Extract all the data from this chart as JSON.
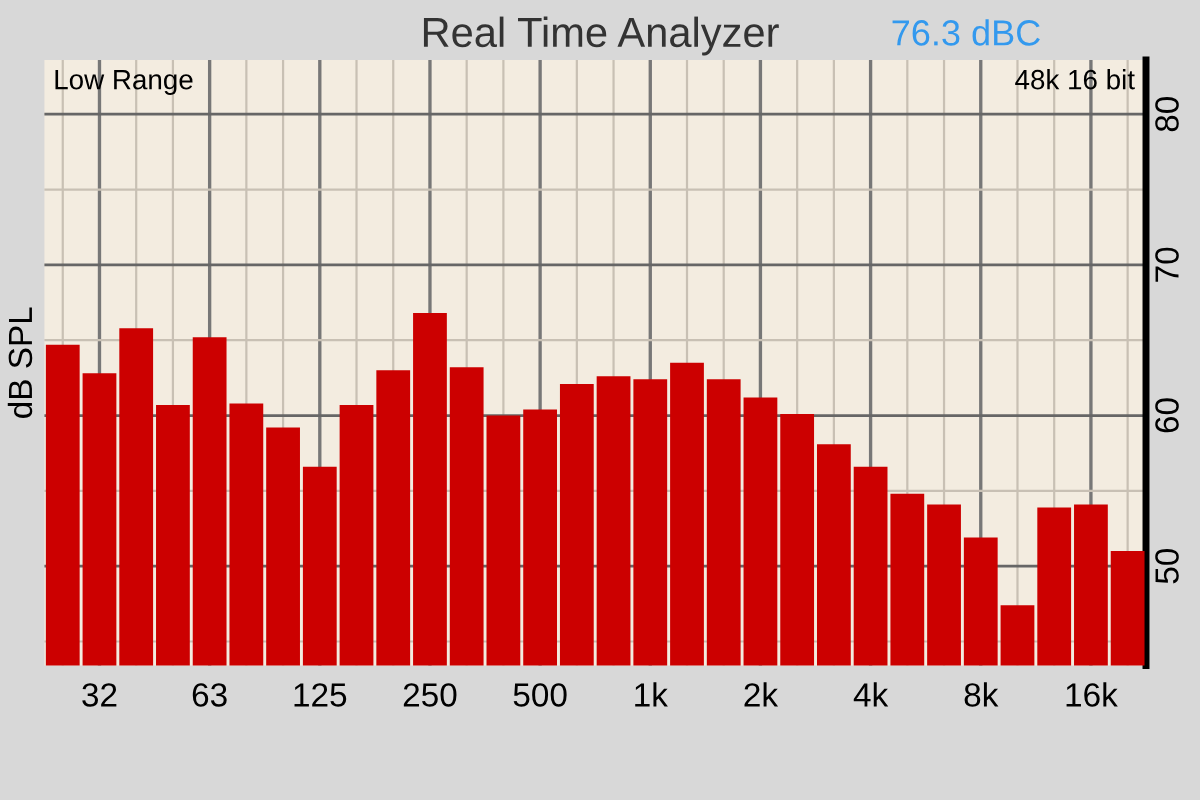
{
  "chart_data": {
    "type": "bar",
    "title": "Real Time Analyzer",
    "ylabel": "dB SPL",
    "annotations": [
      "76.3 dBC",
      "Low Range",
      "48k 16 bit"
    ],
    "categories": [
      null,
      "32",
      null,
      null,
      "63",
      null,
      null,
      "125",
      null,
      null,
      "250",
      null,
      null,
      "500",
      null,
      null,
      "1k",
      null,
      null,
      "2k",
      null,
      null,
      "4k",
      null,
      null,
      "8k",
      null,
      null,
      "16k",
      null
    ],
    "values": [
      64.7,
      62.8,
      65.8,
      60.7,
      65.2,
      60.8,
      59.2,
      56.6,
      60.7,
      63.0,
      66.8,
      63.2,
      60.0,
      60.4,
      62.1,
      62.6,
      62.4,
      63.5,
      62.4,
      61.2,
      60.1,
      58.1,
      56.6,
      54.8,
      54.1,
      51.9,
      47.4,
      53.9,
      54.1,
      51.0
    ],
    "color": "#cc0000",
    "ylim": [
      43.4,
      83.6
    ],
    "yticks": [
      {
        "value": 45,
        "label": null
      },
      50,
      {
        "value": 55,
        "label": null
      },
      60,
      {
        "value": 65,
        "label": null
      },
      70,
      {
        "value": 75,
        "label": null
      },
      80
    ],
    "grid": true
  }
}
